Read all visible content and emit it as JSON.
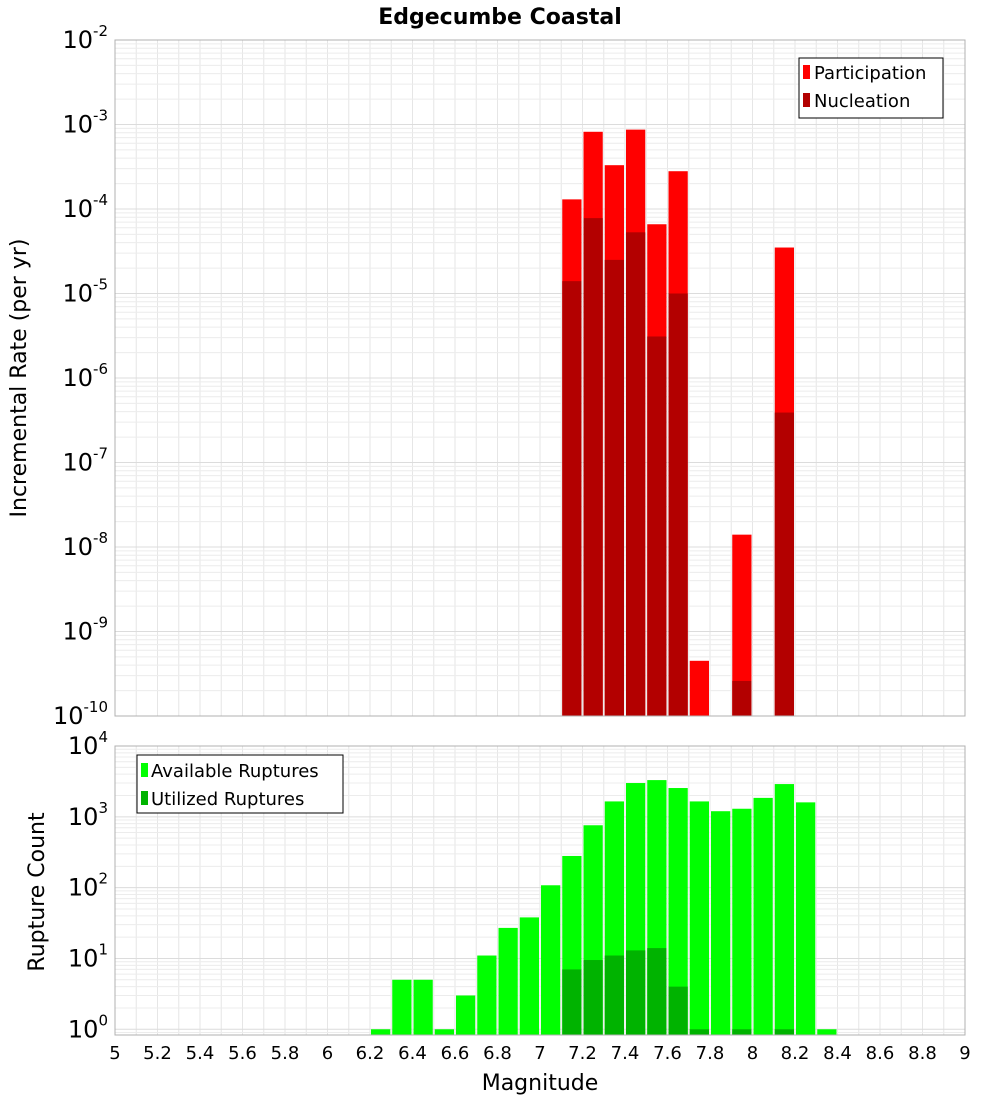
{
  "title": "Edgecumbe Coastal",
  "colors": {
    "participation": "#ff0000",
    "nucleation": "#b30000",
    "available": "#00ff00",
    "utilized": "#00b300",
    "grid": "#e6e6e6",
    "frame": "#b0b0b0"
  },
  "chart_data": [
    {
      "type": "bar",
      "name": "rate-chart",
      "scale": "log",
      "ylabel": "Incremental Rate (per yr)",
      "ylim": [
        1e-10,
        0.01
      ],
      "xlim": [
        5,
        9
      ],
      "bin_width": 0.1,
      "y_ticks": [
        {
          "base": "10",
          "exp": "-2"
        },
        {
          "base": "10",
          "exp": "-3"
        },
        {
          "base": "10",
          "exp": "-4"
        },
        {
          "base": "10",
          "exp": "-5"
        },
        {
          "base": "10",
          "exp": "-6"
        },
        {
          "base": "10",
          "exp": "-7"
        },
        {
          "base": "10",
          "exp": "-8"
        },
        {
          "base": "10",
          "exp": "-9"
        },
        {
          "base": "10",
          "exp": "-10"
        }
      ],
      "legend": {
        "position": "top-right",
        "entries": [
          "Participation",
          "Nucleation"
        ]
      },
      "series": [
        {
          "name": "Participation",
          "x": [
            7.15,
            7.25,
            7.35,
            7.45,
            7.55,
            7.65,
            7.75,
            7.95,
            8.15
          ],
          "values": [
            0.00013,
            0.00082,
            0.00033,
            0.00087,
            6.6e-05,
            0.00028,
            4.5e-10,
            1.4e-08,
            3.5e-05
          ]
        },
        {
          "name": "Nucleation",
          "x": [
            7.15,
            7.25,
            7.35,
            7.45,
            7.55,
            7.65,
            7.95,
            8.15
          ],
          "values": [
            1.4e-05,
            7.8e-05,
            2.5e-05,
            5.3e-05,
            3.1e-06,
            1e-05,
            2.6e-10,
            3.9e-07
          ]
        }
      ]
    },
    {
      "type": "bar",
      "name": "count-chart",
      "scale": "log",
      "ylabel": "Rupture Count",
      "xlabel": "Magnitude",
      "ylim": [
        0.83,
        10000
      ],
      "xlim": [
        5,
        9
      ],
      "bin_width": 0.1,
      "y_ticks": [
        {
          "value": 10000,
          "base": "10",
          "exp": "4"
        },
        {
          "value": 1000,
          "base": "10",
          "exp": "3"
        },
        {
          "value": 100,
          "base": "10",
          "exp": "2"
        },
        {
          "value": 10,
          "base": "10",
          "exp": "1"
        },
        {
          "value": 1,
          "base": "10",
          "exp": "0"
        }
      ],
      "x_ticks": [
        "5",
        "5.2",
        "5.4",
        "5.6",
        "5.8",
        "6",
        "6.2",
        "6.4",
        "6.6",
        "6.8",
        "7",
        "7.2",
        "7.4",
        "7.6",
        "7.8",
        "8",
        "8.2",
        "8.4",
        "8.6",
        "8.8",
        "9"
      ],
      "legend": {
        "position": "top-left",
        "entries": [
          "Available Ruptures",
          "Utilized Ruptures"
        ]
      },
      "series": [
        {
          "name": "Available Ruptures",
          "x": [
            6.25,
            6.35,
            6.45,
            6.55,
            6.65,
            6.75,
            6.85,
            6.95,
            7.05,
            7.15,
            7.25,
            7.35,
            7.45,
            7.55,
            7.65,
            7.75,
            7.85,
            7.95,
            8.05,
            8.15,
            8.25,
            8.35
          ],
          "values": [
            1,
            5,
            5,
            1,
            3,
            11,
            27,
            38,
            108,
            280,
            760,
            1650,
            3000,
            3300,
            2550,
            1650,
            1200,
            1300,
            1850,
            2900,
            1600,
            1
          ]
        },
        {
          "name": "Utilized Ruptures",
          "x": [
            7.15,
            7.25,
            7.35,
            7.45,
            7.55,
            7.65,
            7.75,
            7.95,
            8.15
          ],
          "values": [
            7,
            9.5,
            11,
            13,
            14,
            4,
            1,
            1,
            1
          ]
        }
      ]
    }
  ]
}
